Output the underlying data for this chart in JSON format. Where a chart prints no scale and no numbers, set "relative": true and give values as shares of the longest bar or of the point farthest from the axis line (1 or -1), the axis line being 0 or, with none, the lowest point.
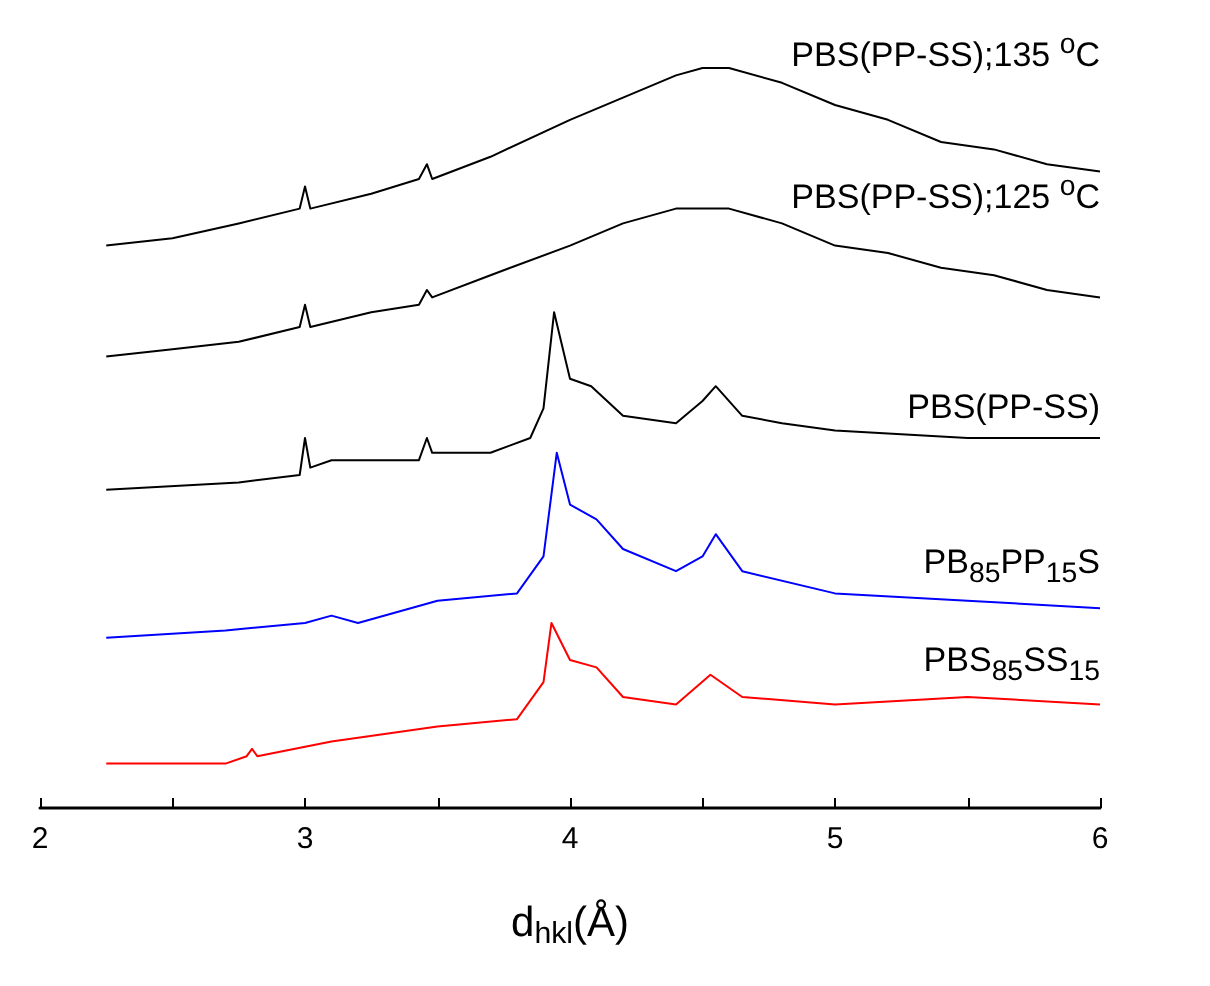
{
  "chart_data": {
    "type": "line",
    "relative": true,
    "xlabel": "d$_{hkl}$(Å)",
    "xlim": [
      2,
      6
    ],
    "xticks": [
      2,
      3,
      4,
      5,
      6
    ],
    "grid": false,
    "legend": false,
    "marker": "none",
    "line_style": "solid",
    "series": [
      {
        "name": "PBS(PP-SS);135 $^{o}$C",
        "color": "#000000",
        "x": [
          2.25,
          2.5,
          2.75,
          2.98,
          3.0,
          3.02,
          3.25,
          3.43,
          3.46,
          3.48,
          3.7,
          4.0,
          4.2,
          4.4,
          4.5,
          4.6,
          4.8,
          5.0,
          5.2,
          5.4,
          5.6,
          5.8,
          6.0
        ],
        "values": [
          0.76,
          0.77,
          0.79,
          0.81,
          0.84,
          0.81,
          0.83,
          0.85,
          0.87,
          0.85,
          0.88,
          0.93,
          0.96,
          0.99,
          1,
          1,
          0.98,
          0.95,
          0.93,
          0.9,
          0.89,
          0.87,
          0.86
        ]
      },
      {
        "name": "PBS(PP-SS);125 $^{o}$C",
        "color": "#000000",
        "x": [
          2.25,
          2.5,
          2.75,
          2.98,
          3.0,
          3.02,
          3.25,
          3.43,
          3.46,
          3.48,
          3.7,
          4.0,
          4.2,
          4.4,
          4.5,
          4.6,
          4.8,
          5.0,
          5.2,
          5.4,
          5.6,
          5.8,
          6.0
        ],
        "values": [
          0.61,
          0.62,
          0.63,
          0.65,
          0.68,
          0.65,
          0.67,
          0.68,
          0.7,
          0.69,
          0.72,
          0.76,
          0.79,
          0.81,
          0.81,
          0.81,
          0.79,
          0.76,
          0.75,
          0.73,
          0.72,
          0.7,
          0.69
        ]
      },
      {
        "name": "PBS(PP-SS)",
        "color": "#000000",
        "x": [
          2.25,
          2.75,
          2.98,
          3.0,
          3.02,
          3.1,
          3.3,
          3.43,
          3.46,
          3.48,
          3.7,
          3.85,
          3.9,
          3.94,
          4.0,
          4.08,
          4.2,
          4.4,
          4.5,
          4.55,
          4.65,
          4.8,
          5.0,
          5.5,
          6.0
        ],
        "values": [
          0.43,
          0.44,
          0.45,
          0.5,
          0.46,
          0.47,
          0.47,
          0.47,
          0.5,
          0.48,
          0.48,
          0.5,
          0.54,
          0.67,
          0.58,
          0.57,
          0.53,
          0.52,
          0.55,
          0.57,
          0.53,
          0.52,
          0.51,
          0.5,
          0.5
        ]
      },
      {
        "name": "PB$_{85}$PP$_{15}$S",
        "color": "#0000ff",
        "x": [
          2.25,
          2.7,
          3.0,
          3.1,
          3.2,
          3.5,
          3.8,
          3.9,
          3.95,
          4.0,
          4.1,
          4.2,
          4.4,
          4.5,
          4.55,
          4.65,
          5.0,
          5.5,
          6.0
        ],
        "values": [
          0.23,
          0.24,
          0.25,
          0.26,
          0.25,
          0.28,
          0.29,
          0.34,
          0.48,
          0.41,
          0.39,
          0.35,
          0.32,
          0.34,
          0.37,
          0.32,
          0.29,
          0.28,
          0.27
        ]
      },
      {
        "name": "PBS$_{85}$SS$_{15}$",
        "color": "#ff0000",
        "x": [
          2.25,
          2.7,
          2.78,
          2.8,
          2.82,
          3.1,
          3.5,
          3.8,
          3.9,
          3.93,
          4.0,
          4.1,
          4.2,
          4.4,
          4.53,
          4.65,
          5.0,
          5.5,
          6.0
        ],
        "values": [
          0.06,
          0.06,
          0.07,
          0.08,
          0.07,
          0.09,
          0.11,
          0.12,
          0.17,
          0.25,
          0.2,
          0.19,
          0.15,
          0.14,
          0.18,
          0.15,
          0.14,
          0.15,
          0.14
        ]
      }
    ]
  }
}
